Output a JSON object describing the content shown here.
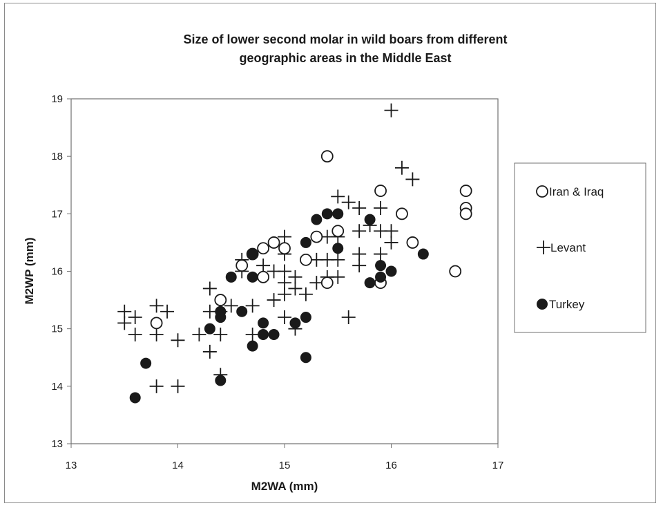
{
  "chart_data": {
    "type": "scatter",
    "title_lines": [
      "Size of lower second molar in wild boars from different",
      "geographic areas in the Middle East"
    ],
    "xlabel": "M2WA (mm)",
    "ylabel": "M2WP (mm)",
    "xlim": [
      13,
      17
    ],
    "ylim": [
      13,
      19
    ],
    "xticks": [
      "13",
      "14",
      "15",
      "16",
      "17"
    ],
    "yticks": [
      "13",
      "14",
      "15",
      "16",
      "17",
      "18",
      "19"
    ],
    "grid": false,
    "legend_position": "right",
    "series": [
      {
        "name": "Iran & Iraq",
        "marker": "open-circle",
        "points": [
          [
            13.8,
            15.1
          ],
          [
            14.4,
            15.5
          ],
          [
            14.6,
            16.1
          ],
          [
            14.7,
            16.3
          ],
          [
            14.8,
            16.4
          ],
          [
            14.8,
            15.9
          ],
          [
            14.9,
            16.5
          ],
          [
            15.0,
            16.4
          ],
          [
            15.2,
            16.2
          ],
          [
            15.3,
            16.6
          ],
          [
            15.4,
            18.0
          ],
          [
            15.4,
            15.8
          ],
          [
            15.5,
            16.7
          ],
          [
            15.9,
            17.4
          ],
          [
            15.9,
            15.8
          ],
          [
            16.1,
            17.0
          ],
          [
            16.2,
            16.5
          ],
          [
            16.6,
            16.0
          ],
          [
            16.7,
            17.4
          ],
          [
            16.7,
            17.1
          ],
          [
            16.7,
            17.0
          ]
        ]
      },
      {
        "name": "Levant",
        "marker": "plus",
        "points": [
          [
            13.5,
            15.3
          ],
          [
            13.5,
            15.1
          ],
          [
            13.6,
            15.2
          ],
          [
            13.6,
            14.9
          ],
          [
            13.8,
            15.4
          ],
          [
            13.8,
            14.9
          ],
          [
            13.8,
            14.0
          ],
          [
            13.9,
            15.3
          ],
          [
            14.0,
            14.8
          ],
          [
            14.0,
            14.0
          ],
          [
            14.2,
            14.9
          ],
          [
            14.3,
            15.7
          ],
          [
            14.3,
            15.3
          ],
          [
            14.3,
            14.6
          ],
          [
            14.4,
            15.3
          ],
          [
            14.4,
            14.9
          ],
          [
            14.4,
            14.2
          ],
          [
            14.5,
            15.4
          ],
          [
            14.6,
            16.2
          ],
          [
            14.6,
            16.0
          ],
          [
            14.7,
            15.4
          ],
          [
            14.7,
            14.9
          ],
          [
            14.8,
            16.1
          ],
          [
            14.9,
            15.5
          ],
          [
            14.9,
            16.0
          ],
          [
            15.0,
            16.6
          ],
          [
            15.0,
            16.3
          ],
          [
            15.0,
            16.0
          ],
          [
            15.0,
            15.8
          ],
          [
            15.0,
            15.6
          ],
          [
            15.0,
            15.2
          ],
          [
            15.1,
            15.9
          ],
          [
            15.1,
            15.7
          ],
          [
            15.1,
            15.0
          ],
          [
            15.2,
            15.6
          ],
          [
            15.3,
            16.2
          ],
          [
            15.3,
            15.8
          ],
          [
            15.4,
            16.6
          ],
          [
            15.4,
            16.2
          ],
          [
            15.4,
            15.9
          ],
          [
            15.5,
            17.3
          ],
          [
            15.5,
            16.6
          ],
          [
            15.5,
            16.2
          ],
          [
            15.5,
            15.9
          ],
          [
            15.6,
            17.2
          ],
          [
            15.6,
            15.2
          ],
          [
            15.7,
            17.1
          ],
          [
            15.7,
            16.7
          ],
          [
            15.7,
            16.3
          ],
          [
            15.7,
            16.1
          ],
          [
            15.8,
            16.8
          ],
          [
            15.9,
            17.1
          ],
          [
            15.9,
            16.7
          ],
          [
            15.9,
            16.3
          ],
          [
            16.0,
            18.8
          ],
          [
            16.0,
            16.7
          ],
          [
            16.0,
            16.5
          ],
          [
            16.1,
            17.8
          ],
          [
            16.2,
            17.6
          ]
        ]
      },
      {
        "name": "Turkey",
        "marker": "filled-circle",
        "points": [
          [
            13.6,
            13.8
          ],
          [
            13.7,
            14.4
          ],
          [
            14.3,
            15.0
          ],
          [
            14.4,
            15.3
          ],
          [
            14.4,
            15.2
          ],
          [
            14.4,
            14.1
          ],
          [
            14.5,
            15.9
          ],
          [
            14.6,
            15.3
          ],
          [
            14.7,
            16.3
          ],
          [
            14.7,
            15.9
          ],
          [
            14.7,
            14.7
          ],
          [
            14.8,
            15.1
          ],
          [
            14.8,
            14.9
          ],
          [
            14.9,
            14.9
          ],
          [
            15.1,
            15.1
          ],
          [
            15.2,
            16.5
          ],
          [
            15.2,
            15.2
          ],
          [
            15.2,
            14.5
          ],
          [
            15.3,
            16.9
          ],
          [
            15.4,
            17.0
          ],
          [
            15.5,
            17.0
          ],
          [
            15.5,
            16.4
          ],
          [
            15.8,
            16.9
          ],
          [
            15.8,
            15.8
          ],
          [
            15.9,
            16.1
          ],
          [
            15.9,
            15.9
          ],
          [
            16.0,
            16.0
          ],
          [
            16.3,
            16.3
          ]
        ]
      }
    ]
  }
}
